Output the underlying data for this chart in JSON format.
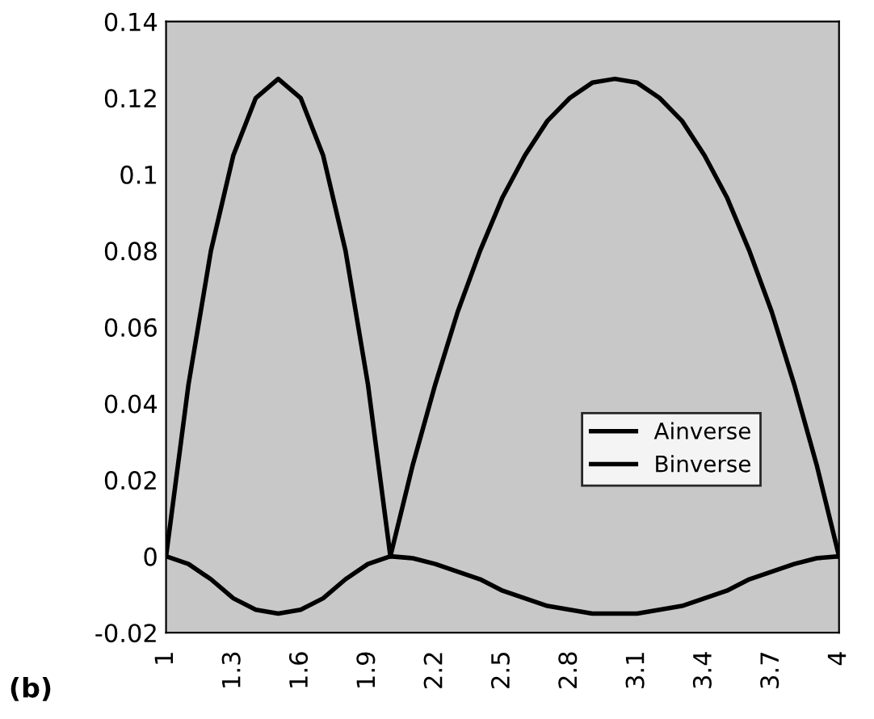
{
  "chart_data": {
    "type": "line",
    "categories": [
      "1",
      null,
      null,
      "1.3",
      null,
      null,
      "1.6",
      null,
      null,
      "1.9",
      null,
      null,
      "2.2",
      null,
      null,
      "2.5",
      null,
      null,
      "2.8",
      null,
      null,
      "3.1",
      null,
      null,
      "3.4",
      null,
      null,
      "3.7",
      null,
      null,
      "4"
    ],
    "series": [
      {
        "name": "Ainverse",
        "color": "#000000",
        "values": [
          0,
          0.045,
          0.08,
          0.105,
          0.12,
          0.125,
          0.12,
          0.105,
          0.08,
          0.045,
          0,
          0.024,
          0.045,
          0.064,
          0.08,
          0.094,
          0.105,
          0.114,
          0.12,
          0.124,
          0.125,
          0.124,
          0.12,
          0.114,
          0.105,
          0.094,
          0.08,
          0.064,
          0.045,
          0.024,
          0
        ]
      },
      {
        "name": "Binverse",
        "color": "#000000",
        "values": [
          0,
          -0.002,
          -0.006,
          -0.011,
          -0.014,
          -0.015,
          -0.014,
          -0.011,
          -0.006,
          -0.002,
          0,
          -0.0005,
          -0.002,
          -0.004,
          -0.006,
          -0.009,
          -0.011,
          -0.013,
          -0.014,
          -0.015,
          -0.015,
          -0.015,
          -0.014,
          -0.013,
          -0.011,
          -0.009,
          -0.006,
          -0.004,
          -0.002,
          -0.0005,
          0
        ]
      }
    ],
    "ylim": [
      -0.02,
      0.14
    ],
    "yticks": [
      -0.02,
      0,
      0.02,
      0.04,
      0.06,
      0.08,
      0.1,
      0.12,
      0.14
    ],
    "annotations": [
      "(b)"
    ],
    "legend": "right",
    "grid": false,
    "marker": "none",
    "line_style": "solid"
  }
}
